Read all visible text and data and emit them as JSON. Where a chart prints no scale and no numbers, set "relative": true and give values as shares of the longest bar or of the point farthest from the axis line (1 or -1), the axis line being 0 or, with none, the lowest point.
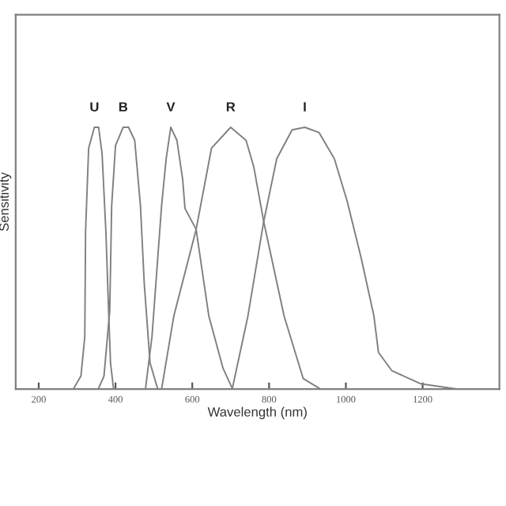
{
  "chart_data": {
    "type": "line",
    "relative": true,
    "xlabel": "Wavelength (nm)",
    "ylabel": "Sensitivity",
    "xlim": [
      140,
      1400
    ],
    "xticks": [
      200,
      400,
      600,
      800,
      1000,
      1200
    ],
    "grid": false,
    "legend": false,
    "marker": "none",
    "line_style": "solid",
    "series": [
      {
        "name": "U",
        "color": "#808080",
        "x": [
          290,
          310,
          320,
          322,
          330,
          345,
          356,
          365,
          375,
          382,
          387,
          395
        ],
        "values": [
          0,
          0.05,
          0.2,
          0.6,
          0.92,
          1,
          1,
          0.9,
          0.6,
          0.3,
          0.1,
          0
        ]
      },
      {
        "name": "B",
        "color": "#808080",
        "x": [
          355,
          370,
          385,
          390,
          400,
          420,
          434,
          450,
          465,
          475,
          490,
          510
        ],
        "values": [
          0,
          0.05,
          0.3,
          0.7,
          0.93,
          1,
          1,
          0.95,
          0.7,
          0.4,
          0.1,
          0
        ]
      },
      {
        "name": "V",
        "color": "#808080",
        "x": [
          478,
          495,
          505,
          520,
          532,
          544,
          560,
          575,
          581,
          610,
          643,
          680,
          705
        ],
        "values": [
          0,
          0.2,
          0.4,
          0.7,
          0.88,
          1,
          0.95,
          0.8,
          0.69,
          0.61,
          0.28,
          0.08,
          0
        ]
      },
      {
        "name": "R",
        "color": "#808080",
        "x": [
          520,
          552,
          610,
          650,
          700,
          740,
          760,
          786,
          839,
          889,
          934
        ],
        "values": [
          0,
          0.28,
          0.61,
          0.92,
          1,
          0.95,
          0.85,
          0.64,
          0.28,
          0.04,
          0
        ]
      },
      {
        "name": "I",
        "color": "#808080",
        "x": [
          704,
          745,
          786,
          820,
          860,
          893,
          930,
          970,
          1003,
          1040,
          1073,
          1085,
          1120,
          1196,
          1290
        ],
        "values": [
          0,
          0.28,
          0.64,
          0.88,
          0.99,
          1,
          0.98,
          0.88,
          0.72,
          0.5,
          0.28,
          0.14,
          0.07,
          0.02,
          0
        ]
      }
    ]
  }
}
